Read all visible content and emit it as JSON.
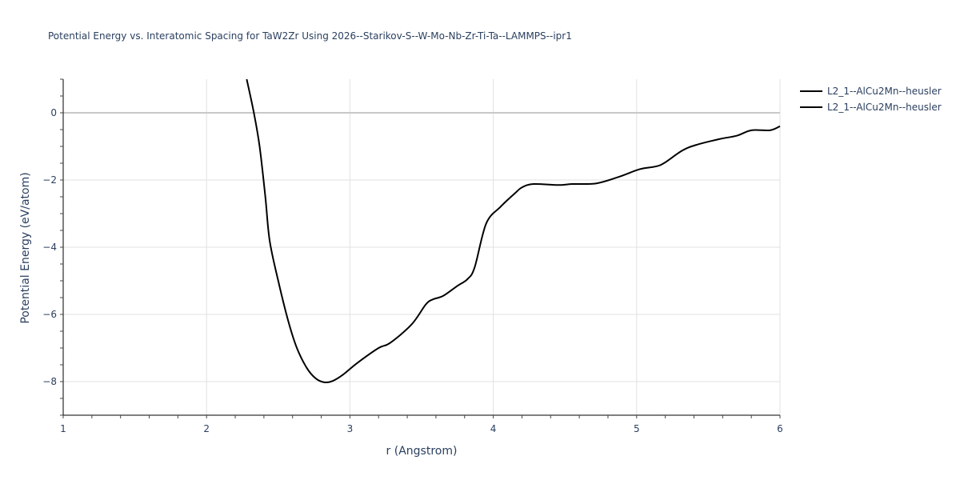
{
  "chart_data": {
    "type": "line",
    "title": "Potential Energy vs. Interatomic Spacing for TaW2Zr Using 2026--Starikov-S--W-Mo-Nb-Zr-Ti-Ta--LAMMPS--ipr1",
    "xlabel": "r (Angstrom)",
    "ylabel": "Potential Energy (eV/atom)",
    "xlim": [
      1,
      6
    ],
    "ylim": [
      -9,
      1
    ],
    "x_ticks": [
      "1",
      "2",
      "3",
      "4",
      "5",
      "6"
    ],
    "y_ticks": [
      "0",
      "−2",
      "−4",
      "−6",
      "−8"
    ],
    "grid": true,
    "legend_position": "right-top",
    "series": [
      {
        "name": "L2_1--AlCu2Mn--heusler",
        "color": "#000000",
        "x": [
          2.28,
          2.33,
          2.37,
          2.41,
          2.44,
          2.5,
          2.57,
          2.63,
          2.7,
          2.76,
          2.82,
          2.88,
          2.95,
          3.05,
          3.2,
          3.28,
          3.43,
          3.53,
          3.58,
          3.65,
          3.75,
          3.82,
          3.87,
          3.95,
          4.05,
          4.15,
          4.2,
          4.28,
          4.45,
          4.55,
          4.72,
          4.88,
          5.02,
          5.13,
          5.19,
          5.32,
          5.42,
          5.58,
          5.7,
          5.8,
          5.93,
          6.0
        ],
        "y": [
          1.0,
          0.0,
          -1.0,
          -2.5,
          -3.8,
          -5.0,
          -6.2,
          -7.0,
          -7.6,
          -7.9,
          -8.02,
          -7.98,
          -7.8,
          -7.45,
          -7.0,
          -6.85,
          -6.3,
          -5.7,
          -5.55,
          -5.45,
          -5.15,
          -4.95,
          -4.6,
          -3.3,
          -2.8,
          -2.4,
          -2.22,
          -2.12,
          -2.15,
          -2.12,
          -2.1,
          -1.9,
          -1.68,
          -1.6,
          -1.5,
          -1.12,
          -0.95,
          -0.78,
          -0.68,
          -0.52,
          -0.52,
          -0.4
        ]
      },
      {
        "name": "L2_1--AlCu2Mn--heusler",
        "color": "#000000",
        "x": [],
        "y": []
      }
    ]
  },
  "legend": {
    "items": [
      {
        "label": "L2_1--AlCu2Mn--heusler"
      },
      {
        "label": "L2_1--AlCu2Mn--heusler"
      }
    ]
  }
}
